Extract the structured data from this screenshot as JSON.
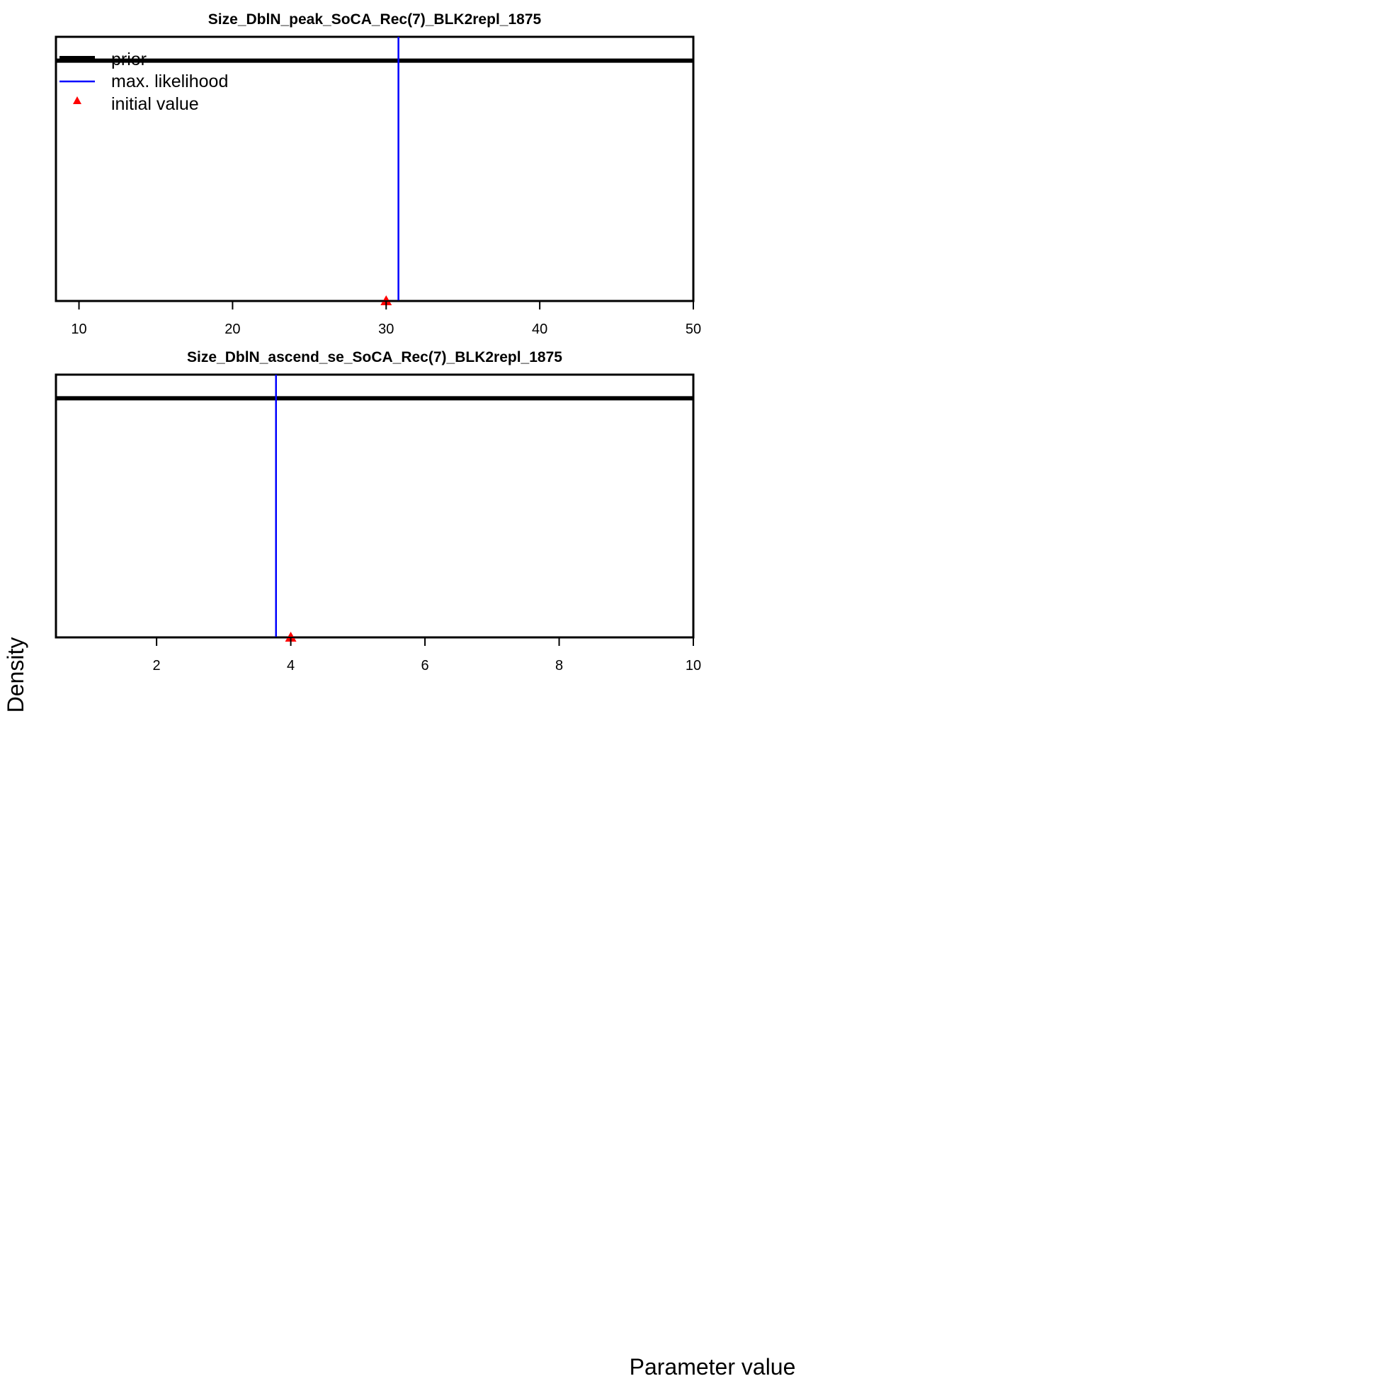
{
  "figure": {
    "xlabel": "Parameter value",
    "ylabel": "Density"
  },
  "colors": {
    "prior": "#000000",
    "max_likelihood": "#0000ff",
    "initial_value": "#ff0000",
    "frame": "#000000"
  },
  "legend": {
    "placement": "top-left",
    "entries": [
      {
        "label": "prior",
        "symbol": "thick-line"
      },
      {
        "label": "max. likelihood",
        "symbol": "line"
      },
      {
        "label": "initial value",
        "symbol": "triangle"
      }
    ]
  },
  "chart_data": [
    {
      "type": "line",
      "title": "Size_DblN_peak_SoCA_Rec(7)_BLK2repl_1875",
      "xlim": [
        8.5,
        50
      ],
      "ticks": [
        10,
        20,
        30,
        40,
        50
      ],
      "tick_labels": [
        "10",
        "20",
        "30",
        "40",
        "50"
      ],
      "prior_level": 0.91,
      "max_likelihood": 30.8,
      "initial_value": 30,
      "legend_shown": true
    },
    {
      "type": "line",
      "title": "Size_DblN_ascend_se_SoCA_Rec(7)_BLK2repl_1875",
      "xlim": [
        0.5,
        10
      ],
      "ticks": [
        2,
        4,
        6,
        8,
        10
      ],
      "tick_labels": [
        "2",
        "4",
        "6",
        "8",
        "10"
      ],
      "prior_level": 0.91,
      "max_likelihood": 3.78,
      "initial_value": 4,
      "legend_shown": false
    }
  ]
}
